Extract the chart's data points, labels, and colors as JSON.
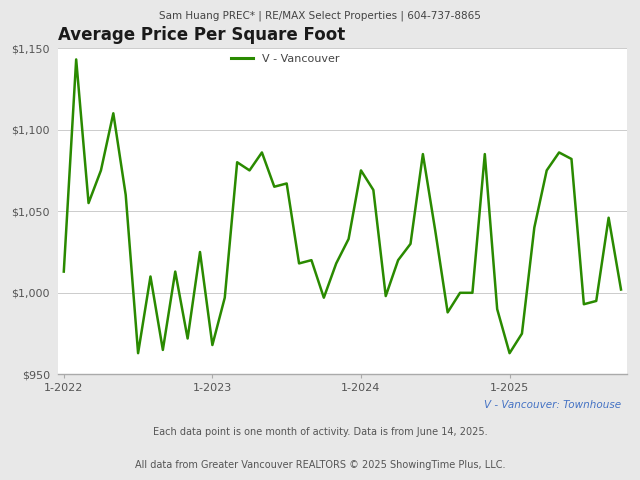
{
  "title": "Average Price Per Square Foot",
  "header": "Sam Huang PREC* | RE/MAX Select Properties | 604-737-8865",
  "footer1": "V - Vancouver: Townhouse",
  "footer2": "Each data point is one month of activity. Data is from June 14, 2025.",
  "footer3": "All data from Greater Vancouver REALTORS © 2025 ShowingTime Plus, LLC.",
  "legend_label": "V - Vancouver",
  "line_color": "#2a8a00",
  "background_color": "#e8e8e8",
  "plot_bg_color": "#ffffff",
  "ylim": [
    950,
    1150
  ],
  "yticks": [
    950,
    1000,
    1050,
    1100,
    1150
  ],
  "x_tick_labels": [
    "1-2022",
    "1-2023",
    "1-2024",
    "1-2025"
  ],
  "x_tick_positions": [
    0,
    12,
    24,
    36
  ],
  "values": [
    1013,
    1143,
    1055,
    1075,
    1110,
    1060,
    963,
    1010,
    965,
    1013,
    972,
    1025,
    968,
    997,
    1080,
    1075,
    1086,
    1065,
    1067,
    1018,
    1020,
    997,
    1018,
    1033,
    1075,
    1063,
    998,
    1020,
    1030,
    1085,
    1038,
    988,
    1000,
    1000,
    1085,
    990,
    963,
    975,
    1040,
    1075,
    1086,
    1082,
    993,
    995,
    1046,
    1002
  ]
}
